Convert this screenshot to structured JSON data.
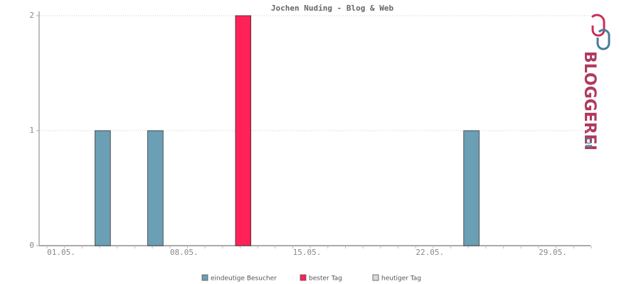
{
  "chart_data": {
    "type": "bar",
    "title": "Jochen Nuding - Blog & Web",
    "categories": [
      "01.05.",
      null,
      null,
      null,
      null,
      null,
      null,
      "08.05.",
      null,
      null,
      null,
      null,
      null,
      null,
      "15.05.",
      null,
      null,
      null,
      null,
      null,
      null,
      "22.05.",
      null,
      null,
      null,
      null,
      null,
      null,
      "29.05.",
      null,
      null
    ],
    "series": [
      {
        "name": "eindeutige Besucher",
        "color": "#6a9fb5",
        "values": [
          0,
          0,
          0,
          1,
          0,
          0,
          1,
          0,
          0,
          0,
          0,
          null,
          0,
          0,
          0,
          0,
          0,
          0,
          0,
          0,
          0,
          0,
          0,
          0,
          1,
          0,
          0,
          0,
          0,
          0,
          0
        ]
      },
      {
        "name": "bester Tag",
        "color": "#ff2157",
        "values": [
          null,
          null,
          null,
          null,
          null,
          null,
          null,
          null,
          null,
          null,
          null,
          2,
          null,
          null,
          null,
          null,
          null,
          null,
          null,
          null,
          null,
          null,
          null,
          null,
          null,
          null,
          null,
          null,
          null,
          null,
          null
        ]
      },
      {
        "name": "heutiger Tag",
        "color": "#d8d8d8",
        "values": [
          null,
          null,
          null,
          null,
          null,
          null,
          null,
          null,
          null,
          null,
          null,
          null,
          null,
          null,
          null,
          null,
          null,
          null,
          null,
          null,
          null,
          null,
          null,
          null,
          null,
          null,
          null,
          null,
          null,
          null,
          null
        ]
      }
    ],
    "ylim": [
      0,
      2
    ],
    "yticks": [
      0,
      1,
      2
    ],
    "grid": true
  },
  "logo": {
    "name": "BLOGGEREI",
    "suffix": ".DE"
  }
}
